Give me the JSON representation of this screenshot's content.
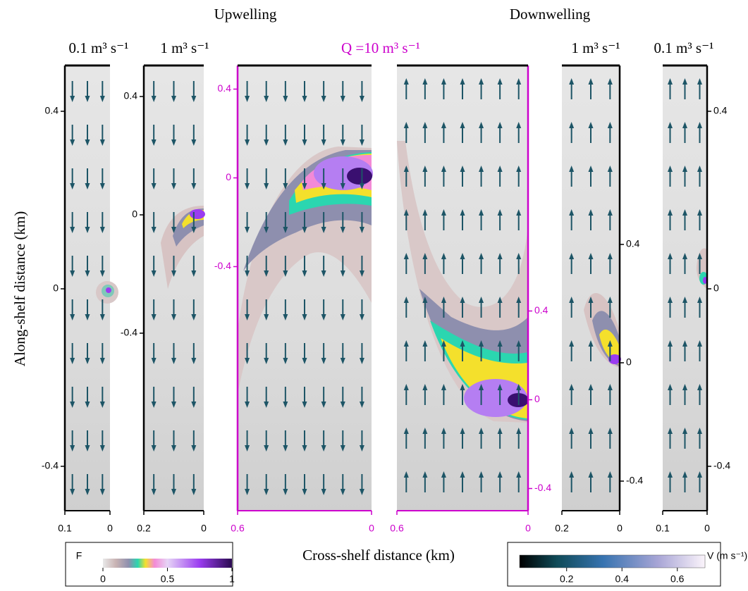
{
  "header": {
    "left_title": "Upwelling",
    "right_title": "Downwelling"
  },
  "y_axis_label": "Along-shelf distance (km)",
  "x_axis_label": "Cross-shelf distance (km)",
  "panels": [
    {
      "title": "0.1 m³ s⁻¹",
      "xlim": [
        0.1,
        0
      ],
      "ylim": [
        -0.5,
        0.5
      ],
      "xticks": [
        0.1,
        0
      ],
      "yticks": [
        0.4,
        0,
        -0.4
      ],
      "axis_side": "left",
      "axis_color": "#000000",
      "flow": "down"
    },
    {
      "title": "1 m³ s⁻¹",
      "xlim": [
        0.2,
        0
      ],
      "ylim": [
        -1.0,
        0.5
      ],
      "xticks": [
        0.2,
        0
      ],
      "yticks": [
        0.4,
        0,
        -0.4
      ],
      "axis_side": "left",
      "axis_color": "#000000",
      "flow": "down"
    },
    {
      "title": "Q =10 m³ s⁻¹",
      "xlim": [
        0.6,
        0
      ],
      "ylim": [
        -1.5,
        0.5
      ],
      "xticks": [
        0.6,
        0
      ],
      "yticks": [
        0.4,
        0,
        -0.4
      ],
      "axis_side": "left",
      "axis_color": "#cc00cc",
      "flow": "down"
    },
    {
      "xlim": [
        0.6,
        0
      ],
      "ylim": [
        -0.5,
        1.5
      ],
      "xticks": [
        0.6,
        0
      ],
      "yticks": [
        0.4,
        0,
        -0.4
      ],
      "axis_side": "right",
      "axis_color": "#cc00cc",
      "flow": "up"
    },
    {
      "title": "1 m³ s⁻¹",
      "xlim": [
        0.2,
        0
      ],
      "ylim": [
        -0.5,
        1.0
      ],
      "xticks": [
        0.2,
        0
      ],
      "yticks": [
        0.4,
        0,
        -0.4
      ],
      "axis_side": "right",
      "axis_color": "#000000",
      "flow": "up"
    },
    {
      "title": "0.1 m³ s⁻¹",
      "xlim": [
        0.1,
        0
      ],
      "ylim": [
        -0.5,
        0.5
      ],
      "xticks": [
        0.1,
        0
      ],
      "yticks": [
        0.4,
        0,
        -0.4
      ],
      "axis_side": "right",
      "axis_color": "#000000",
      "flow": "up"
    }
  ],
  "colorbars": [
    {
      "label": "F",
      "lim": [
        0,
        1
      ],
      "ticks": [
        0,
        0.5,
        1
      ]
    },
    {
      "label": "V (m s⁻¹)",
      "lim": [
        0.03,
        0.7
      ],
      "ticks": [
        0.2,
        0.4,
        0.6
      ]
    }
  ]
}
